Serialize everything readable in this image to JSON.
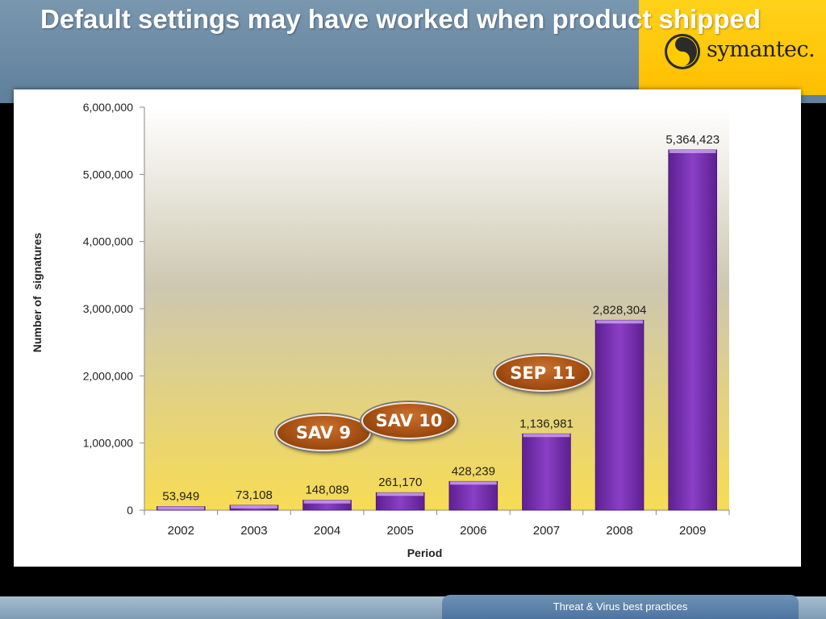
{
  "slide": {
    "title": "Default settings may have worked when product shipped",
    "footer": "Threat & Virus best practices"
  },
  "logo": {
    "text": "symantec."
  },
  "badges": {
    "sav9": "SAV 9",
    "sav10": "SAV 10",
    "sep11": "SEP 11"
  },
  "colors": {
    "bar": "#7a35b0",
    "bar_top": "#c9a0ef",
    "badge": "#a24d12",
    "logo_yellow": "#ffcc00",
    "header": "#6a89a4"
  },
  "chart_data": {
    "type": "bar",
    "categories": [
      "2002",
      "2003",
      "2004",
      "2005",
      "2006",
      "2007",
      "2008",
      "2009"
    ],
    "values": [
      53949,
      73108,
      148089,
      261170,
      428239,
      1136981,
      2828304,
      5364423
    ],
    "value_labels": [
      "53,949",
      "73,108",
      "148,089",
      "261,170",
      "428,239",
      "1,136,981",
      "2,828,304",
      "5,364,423"
    ],
    "title": "",
    "xlabel": "Period",
    "ylabel": "Number of  signatures",
    "ylim": [
      0,
      6000000
    ],
    "yticks": [
      0,
      1000000,
      2000000,
      3000000,
      4000000,
      5000000,
      6000000
    ],
    "ytick_labels": [
      "0",
      "1,000,000",
      "2,000,000",
      "3,000,000",
      "4,000,000",
      "5,000,000",
      "6,000,000"
    ],
    "grid": false,
    "legend": "none"
  }
}
